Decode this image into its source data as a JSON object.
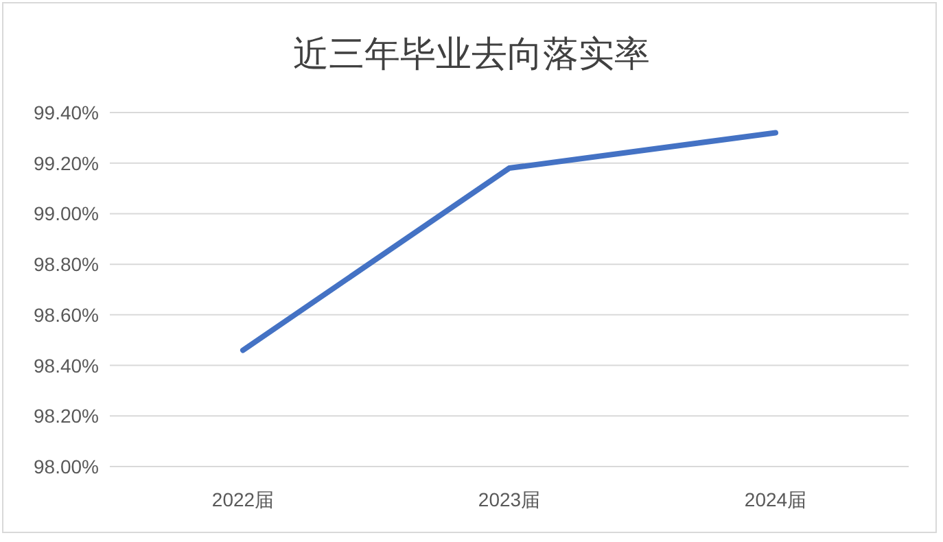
{
  "chart_data": {
    "type": "line",
    "title": "近三年毕业去向落实率",
    "categories": [
      "2022届",
      "2023届",
      "2024届"
    ],
    "series": [
      {
        "color": "#4472c4",
        "values": [
          98.46,
          99.18,
          99.32
        ]
      }
    ],
    "ylim": [
      98,
      99.4
    ],
    "yticks": [
      {
        "value": 98,
        "label": "98.00%"
      },
      {
        "value": 98.2,
        "label": "98.20%"
      },
      {
        "value": 98.4,
        "label": "98.40%"
      },
      {
        "value": 98.6,
        "label": "98.60%"
      },
      {
        "value": 98.8,
        "label": "98.80%"
      },
      {
        "value": 99,
        "label": "99.00%"
      },
      {
        "value": 99.2,
        "label": "99.20%"
      },
      {
        "value": 99.4,
        "label": "99.40%"
      }
    ],
    "grid": "y",
    "marker": "none",
    "line_style": "solid"
  }
}
